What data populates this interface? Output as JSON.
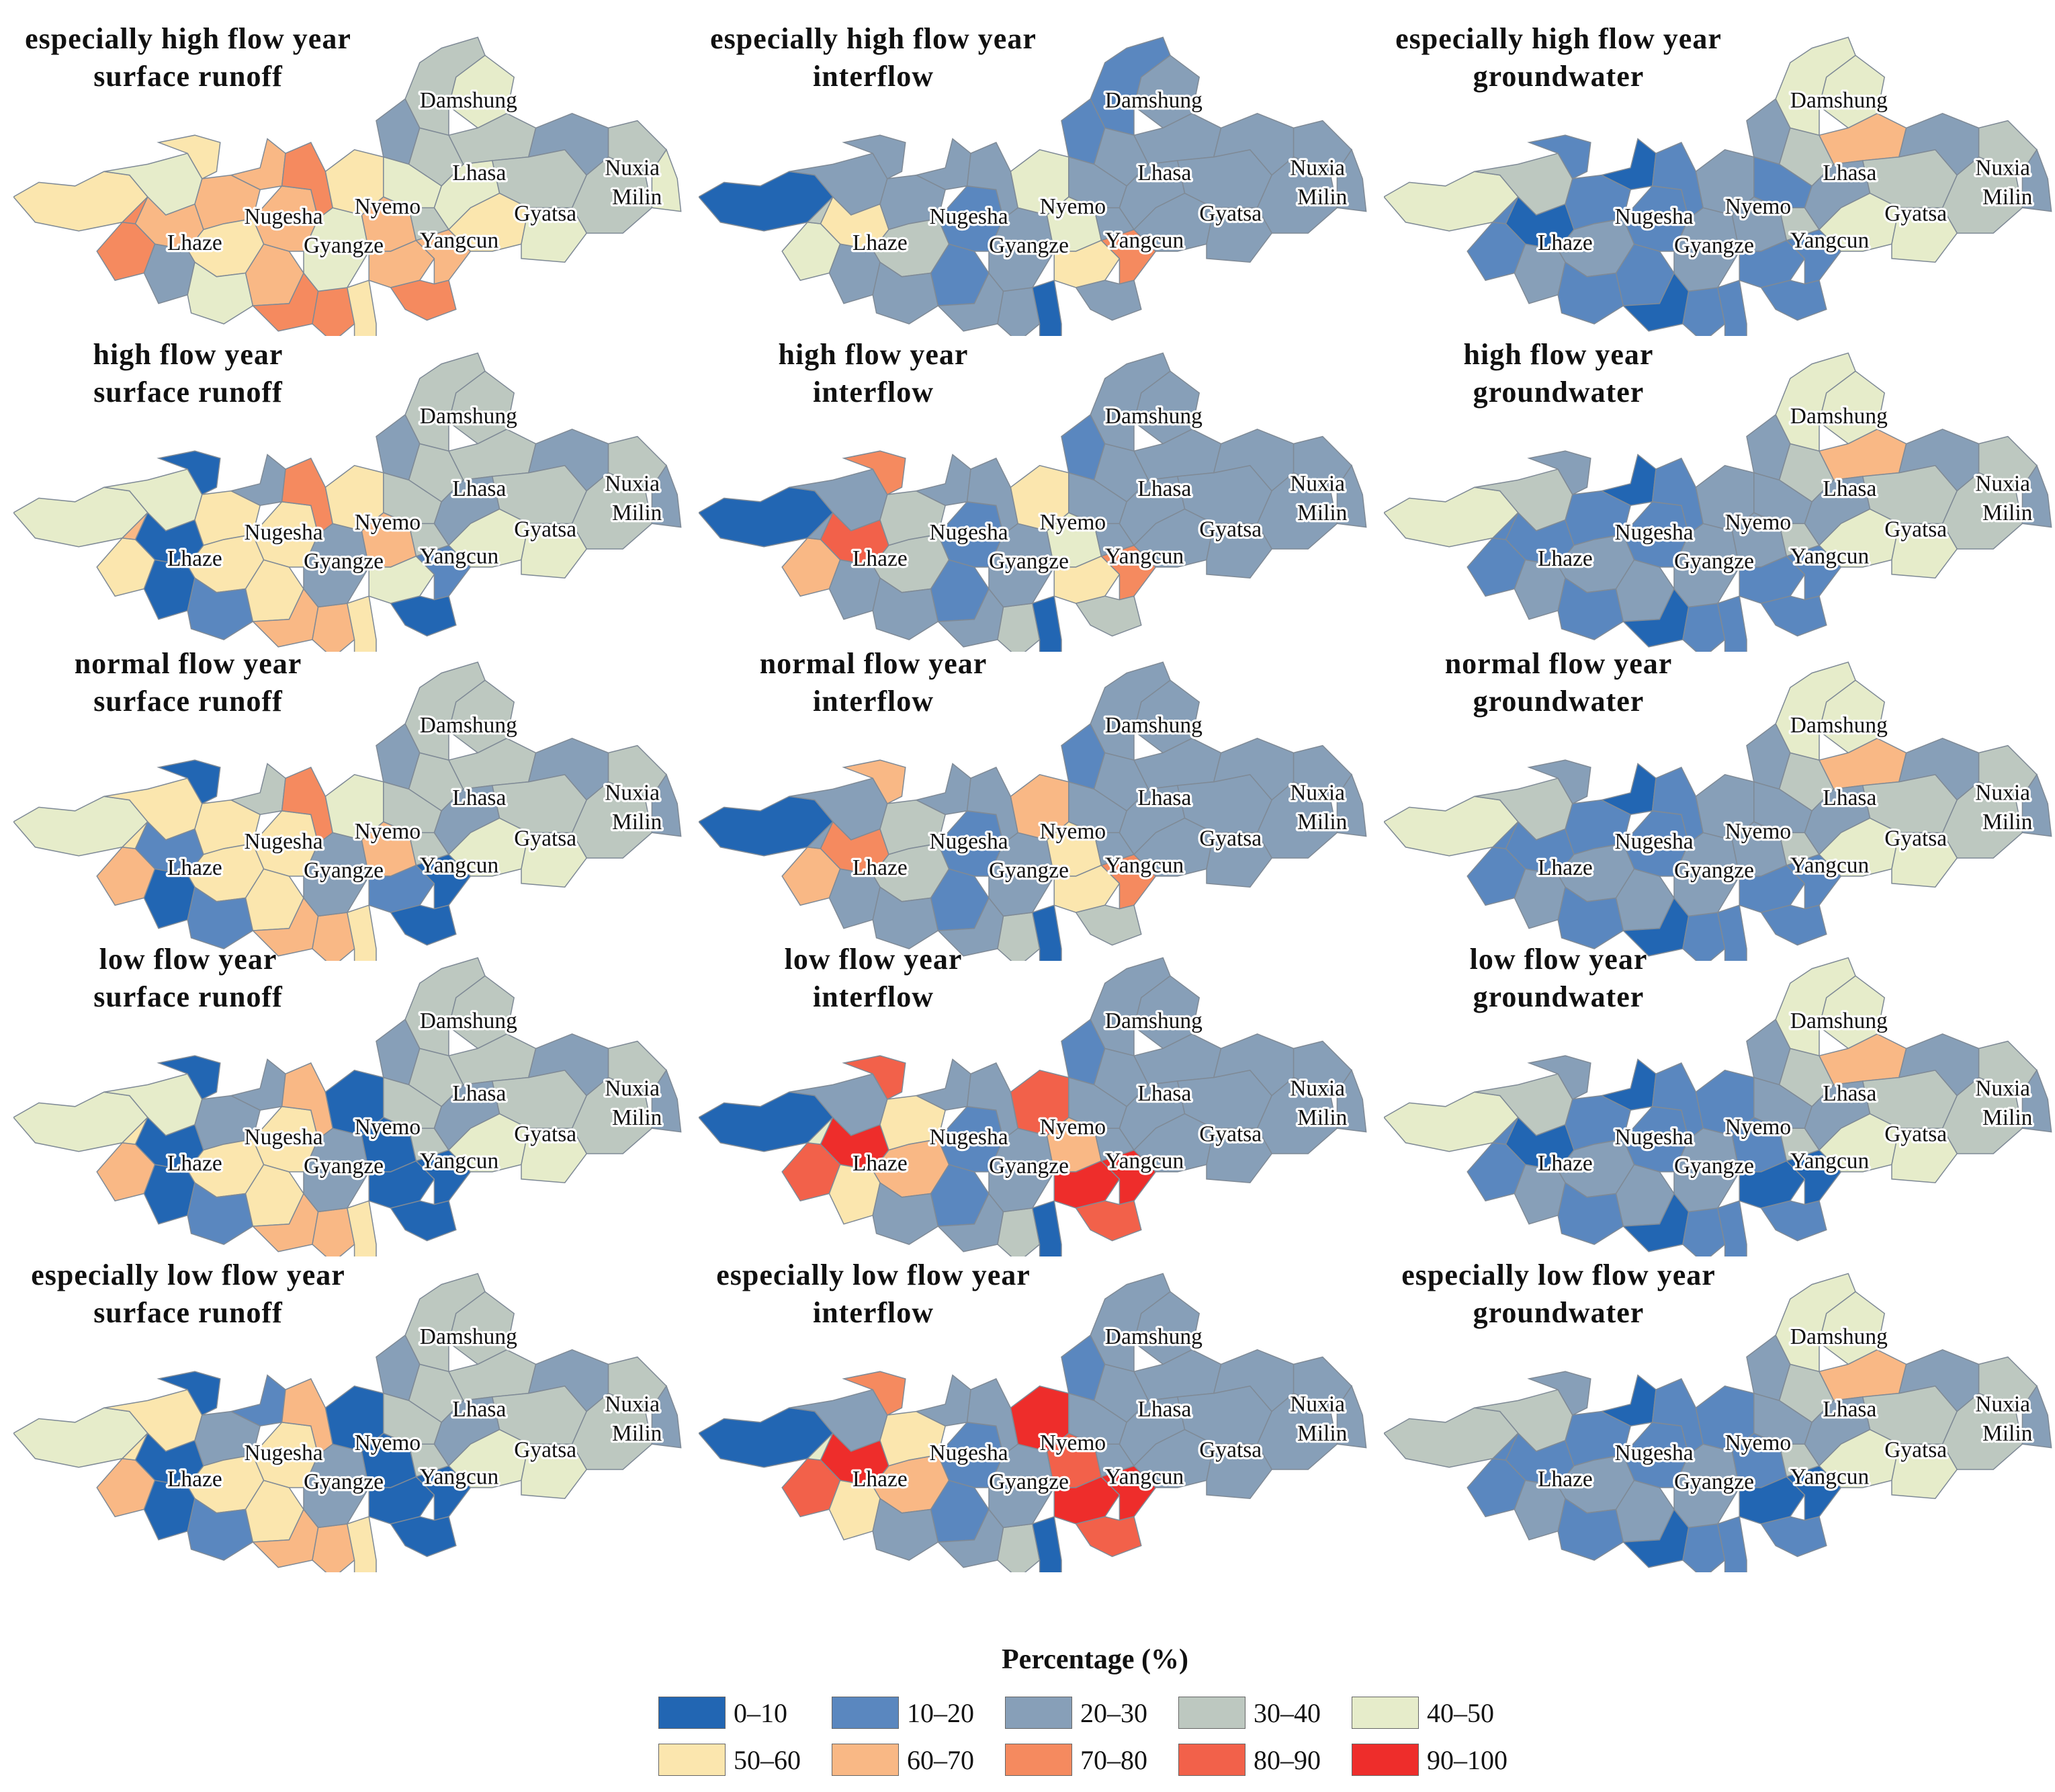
{
  "panels": [
    {
      "title1": "especially high flow year",
      "title2": "surface runoff",
      "row": 0,
      "col": 0,
      "colors": [
        5,
        4,
        5,
        6,
        7,
        7,
        6,
        6,
        5,
        2,
        4,
        6,
        7,
        7,
        6,
        5,
        4,
        7,
        6,
        5,
        6,
        6,
        7,
        2,
        3,
        4,
        3,
        3,
        4,
        3,
        4,
        5,
        3,
        2,
        3,
        4,
        3,
        4
      ]
    },
    {
      "title1": "especially high flow year",
      "title2": "interflow",
      "row": 0,
      "col": 1,
      "colors": [
        0,
        2,
        2,
        5,
        4,
        3,
        2,
        2,
        3,
        2,
        2,
        1,
        2,
        2,
        1,
        0,
        2,
        2,
        4,
        4,
        5,
        7,
        2,
        1,
        2,
        2,
        2,
        1,
        2,
        2,
        2,
        2,
        2,
        2,
        2,
        2,
        2,
        2
      ]
    },
    {
      "title1": "especially high flow year",
      "title2": "groundwater",
      "row": 0,
      "col": 2,
      "colors": [
        4,
        3,
        1,
        0,
        1,
        1,
        1,
        0,
        2,
        2,
        1,
        1,
        0,
        1,
        1,
        1,
        2,
        1,
        2,
        2,
        1,
        1,
        1,
        2,
        3,
        1,
        3,
        4,
        4,
        6,
        2,
        4,
        3,
        2,
        3,
        4,
        3,
        2
      ]
    },
    {
      "title1": "high flow year",
      "title2": "surface runoff",
      "row": 1,
      "col": 0,
      "colors": [
        4,
        4,
        0,
        0,
        5,
        6,
        5,
        2,
        5,
        0,
        1,
        5,
        6,
        6,
        5,
        5,
        2,
        7,
        6,
        5,
        4,
        1,
        0,
        2,
        3,
        3,
        3,
        3,
        3,
        3,
        2,
        4,
        3,
        2,
        3,
        4,
        3,
        2
      ]
    },
    {
      "title1": "high flow year",
      "title2": "interflow",
      "row": 1,
      "col": 1,
      "colors": [
        0,
        2,
        7,
        8,
        6,
        2,
        3,
        2,
        3,
        2,
        2,
        1,
        2,
        3,
        1,
        0,
        2,
        2,
        4,
        5,
        5,
        7,
        3,
        1,
        2,
        2,
        2,
        2,
        2,
        2,
        2,
        2,
        2,
        2,
        2,
        2,
        2,
        2
      ]
    },
    {
      "title1": "high flow year",
      "title2": "groundwater",
      "row": 1,
      "col": 2,
      "colors": [
        4,
        3,
        2,
        1,
        1,
        1,
        1,
        0,
        2,
        2,
        1,
        2,
        0,
        1,
        1,
        1,
        2,
        1,
        2,
        2,
        1,
        1,
        1,
        2,
        3,
        2,
        3,
        4,
        4,
        6,
        2,
        4,
        3,
        2,
        3,
        4,
        3,
        2
      ]
    },
    {
      "title1": "normal flow year",
      "title2": "surface runoff",
      "row": 2,
      "col": 0,
      "colors": [
        4,
        5,
        0,
        1,
        6,
        5,
        5,
        3,
        5,
        0,
        1,
        5,
        6,
        6,
        5,
        5,
        2,
        7,
        6,
        4,
        1,
        0,
        0,
        2,
        3,
        3,
        3,
        3,
        3,
        3,
        2,
        4,
        3,
        2,
        3,
        4,
        3,
        2
      ]
    },
    {
      "title1": "normal flow year",
      "title2": "interflow",
      "row": 2,
      "col": 1,
      "colors": [
        0,
        2,
        6,
        7,
        6,
        2,
        3,
        2,
        3,
        2,
        2,
        1,
        2,
        3,
        1,
        0,
        2,
        2,
        5,
        6,
        5,
        7,
        3,
        1,
        2,
        2,
        2,
        2,
        2,
        2,
        2,
        2,
        2,
        2,
        2,
        2,
        2,
        2
      ]
    },
    {
      "title1": "normal flow year",
      "title2": "groundwater",
      "row": 2,
      "col": 2,
      "colors": [
        4,
        3,
        2,
        1,
        1,
        1,
        1,
        0,
        2,
        2,
        1,
        2,
        0,
        1,
        1,
        1,
        2,
        1,
        2,
        2,
        1,
        1,
        1,
        2,
        3,
        2,
        3,
        4,
        4,
        6,
        2,
        4,
        3,
        2,
        3,
        4,
        3,
        2
      ]
    },
    {
      "title1": "low flow year",
      "title2": "surface runoff",
      "row": 3,
      "col": 0,
      "colors": [
        4,
        4,
        0,
        0,
        6,
        5,
        2,
        2,
        5,
        0,
        1,
        5,
        6,
        6,
        5,
        5,
        2,
        6,
        0,
        0,
        0,
        0,
        0,
        2,
        3,
        3,
        3,
        3,
        3,
        3,
        2,
        4,
        3,
        2,
        3,
        4,
        3,
        2
      ]
    },
    {
      "title1": "low flow year",
      "title2": "interflow",
      "row": 3,
      "col": 1,
      "colors": [
        0,
        2,
        8,
        9,
        8,
        4,
        5,
        2,
        6,
        5,
        2,
        1,
        2,
        3,
        1,
        0,
        2,
        2,
        6,
        8,
        9,
        9,
        8,
        1,
        2,
        2,
        2,
        2,
        2,
        2,
        2,
        2,
        2,
        2,
        2,
        2,
        2,
        2
      ]
    },
    {
      "title1": "low flow year",
      "title2": "groundwater",
      "row": 3,
      "col": 2,
      "colors": [
        4,
        3,
        2,
        0,
        1,
        1,
        1,
        0,
        2,
        2,
        1,
        2,
        0,
        1,
        1,
        1,
        2,
        1,
        1,
        1,
        0,
        0,
        1,
        2,
        3,
        2,
        3,
        4,
        4,
        6,
        2,
        4,
        3,
        2,
        3,
        4,
        3,
        2
      ]
    },
    {
      "title1": "especially low flow year",
      "title2": "surface runoff",
      "row": 4,
      "col": 0,
      "colors": [
        4,
        5,
        0,
        0,
        6,
        5,
        2,
        1,
        5,
        0,
        1,
        5,
        6,
        6,
        5,
        5,
        2,
        6,
        0,
        0,
        0,
        0,
        0,
        2,
        3,
        3,
        3,
        3,
        3,
        3,
        2,
        4,
        3,
        2,
        3,
        4,
        3,
        2
      ]
    },
    {
      "title1": "especially low flow year",
      "title2": "interflow",
      "row": 4,
      "col": 1,
      "colors": [
        0,
        2,
        7,
        9,
        8,
        4,
        5,
        2,
        6,
        5,
        2,
        1,
        2,
        3,
        1,
        0,
        2,
        2,
        8,
        9,
        9,
        9,
        8,
        1,
        2,
        2,
        2,
        2,
        2,
        2,
        2,
        2,
        2,
        2,
        2,
        2,
        2,
        2
      ]
    },
    {
      "title1": "especially low flow year",
      "title2": "groundwater",
      "row": 4,
      "col": 2,
      "colors": [
        3,
        3,
        2,
        1,
        1,
        1,
        1,
        0,
        2,
        2,
        1,
        2,
        0,
        1,
        1,
        1,
        2,
        1,
        1,
        1,
        0,
        0,
        1,
        2,
        3,
        2,
        3,
        4,
        4,
        6,
        2,
        4,
        3,
        2,
        3,
        4,
        3,
        2
      ]
    }
  ],
  "place_labels": [
    "Damshung",
    "Lhasa",
    "Nuxia",
    "Milin",
    "Nugesha",
    "Nyemo",
    "Gyatsa",
    "Lhaze",
    "Gyangze",
    "Yangcun"
  ],
  "legend": {
    "title": "Percentage (%)",
    "items": [
      {
        "label": "0–10",
        "color": "#2266b3"
      },
      {
        "label": "10–20",
        "color": "#5a87bf"
      },
      {
        "label": "20–30",
        "color": "#879fb8"
      },
      {
        "label": "30–40",
        "color": "#bdc8c0"
      },
      {
        "label": "40–50",
        "color": "#e6ecca"
      },
      {
        "label": "50–60",
        "color": "#fbe6ae"
      },
      {
        "label": "60–70",
        "color": "#f9b885"
      },
      {
        "label": "70–80",
        "color": "#f58a5f"
      },
      {
        "label": "80–90",
        "color": "#f2614a"
      },
      {
        "label": "90–100",
        "color": "#ee2d2b"
      }
    ]
  }
}
